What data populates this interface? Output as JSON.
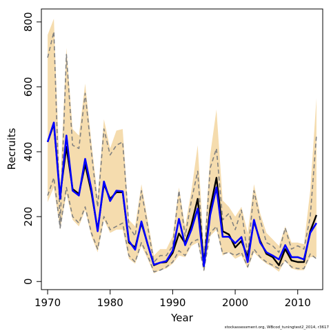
{
  "chart_data": {
    "type": "line",
    "xlabel": "Year",
    "ylabel": "Recruits",
    "xlim": [
      1969,
      2014
    ],
    "ylim": [
      -25,
      840
    ],
    "xticks": [
      1970,
      1980,
      1990,
      2000,
      2010
    ],
    "yticks": [
      0,
      200,
      400,
      600,
      800
    ],
    "credit": "stockassessment.org, WBcod_tuningtest2_2014, r3617",
    "colors": {
      "band": "#f5dcae",
      "dashed": "#808080",
      "black": "#000000",
      "blue": "#0000ff"
    },
    "x": [
      1970,
      1971,
      1972,
      1973,
      1974,
      1975,
      1976,
      1977,
      1978,
      1979,
      1980,
      1981,
      1982,
      1983,
      1984,
      1985,
      1986,
      1987,
      1988,
      1989,
      1990,
      1991,
      1992,
      1993,
      1994,
      1995,
      1996,
      1997,
      1998,
      1999,
      2000,
      2001,
      2002,
      2003,
      2004,
      2005,
      2006,
      2007,
      2008,
      2009,
      2010,
      2011,
      2012,
      2013
    ],
    "band_upper": [
      760,
      810,
      300,
      720,
      470,
      450,
      610,
      430,
      260,
      500,
      410,
      465,
      470,
      190,
      170,
      300,
      190,
      80,
      100,
      100,
      140,
      290,
      170,
      280,
      420,
      100,
      390,
      530,
      250,
      230,
      200,
      230,
      150,
      300,
      210,
      150,
      130,
      110,
      170,
      120,
      120,
      115,
      280,
      565
    ],
    "band_lower": [
      245,
      290,
      160,
      270,
      190,
      170,
      220,
      140,
      90,
      190,
      150,
      160,
      160,
      70,
      55,
      110,
      70,
      25,
      35,
      40,
      55,
      80,
      75,
      110,
      120,
      30,
      140,
      160,
      80,
      90,
      70,
      80,
      40,
      90,
      70,
      55,
      45,
      30,
      65,
      40,
      35,
      35,
      75,
      75
    ],
    "series": [
      {
        "values": [
          690,
          770,
          170,
          700,
          420,
          410,
          580,
          400,
          230,
          470,
          390,
          420,
          430,
          170,
          140,
          280,
          170,
          60,
          80,
          80,
          110,
          280,
          140,
          250,
          340,
          60,
          350,
          410,
          190,
          210,
          160,
          220,
          80,
          280,
          190,
          120,
          110,
          90,
          165,
          100,
          110,
          100,
          200,
          450
        ]
      },
      {
        "values": [
          265,
          320,
          165,
          290,
          200,
          180,
          230,
          150,
          100,
          200,
          160,
          170,
          180,
          80,
          60,
          120,
          80,
          30,
          35,
          45,
          60,
          95,
          80,
          120,
          130,
          35,
          150,
          170,
          85,
          90,
          80,
          90,
          45,
          100,
          75,
          60,
          50,
          40,
          65,
          45,
          40,
          40,
          85,
          70
        ]
      },
      {
        "values": [
          430,
          485,
          265,
          415,
          285,
          270,
          360,
          275,
          160,
          300,
          255,
          275,
          275,
          120,
          105,
          180,
          115,
          50,
          58,
          60,
          88,
          148,
          118,
          175,
          255,
          55,
          225,
          320,
          155,
          145,
          105,
          125,
          75,
          185,
          125,
          85,
          75,
          50,
          100,
          65,
          60,
          60,
          155,
          205
        ]
      },
      {
        "values": [
          430,
          490,
          255,
          450,
          280,
          265,
          378,
          285,
          155,
          308,
          248,
          280,
          278,
          125,
          98,
          185,
          115,
          52,
          58,
          63,
          95,
          193,
          112,
          160,
          225,
          48,
          205,
          290,
          138,
          138,
          118,
          137,
          60,
          190,
          120,
          90,
          80,
          68,
          112,
          75,
          75,
          68,
          150,
          180
        ]
      }
    ]
  }
}
